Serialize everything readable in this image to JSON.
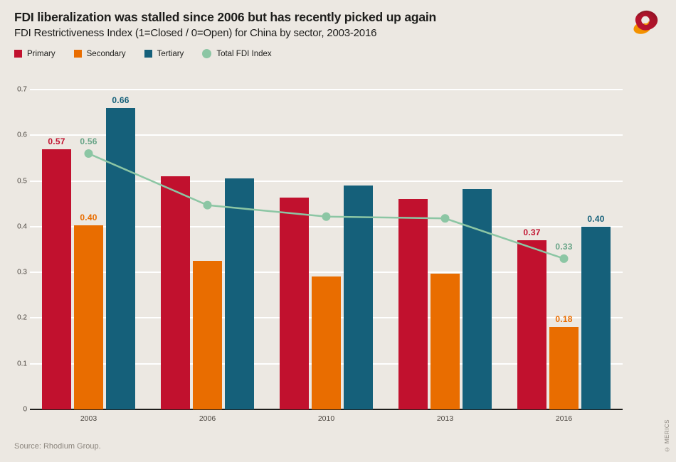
{
  "page": {
    "background": "#ECE8E2"
  },
  "header": {
    "title": "FDI liberalization was stalled since 2006 but has recently picked up again",
    "subtitle": "FDI Restrictiveness Index (1=Closed / 0=Open) for China by sector, 2003-2016"
  },
  "legend": {
    "items": [
      {
        "label": "Primary",
        "color": "#C1112E",
        "shape": "square"
      },
      {
        "label": "Secondary",
        "color": "#E96D00",
        "shape": "square"
      },
      {
        "label": "Tertiary",
        "color": "#15607A",
        "shape": "square"
      },
      {
        "label": "Total FDI Index",
        "color": "#8CC6A4",
        "shape": "circle"
      }
    ]
  },
  "logo": {
    "name": "merics-logo",
    "colors": {
      "dark_red": "#8E1A26",
      "red": "#C1112E",
      "orange": "#F39200"
    }
  },
  "chart_data": {
    "type": "bar",
    "title": "FDI liberalization was stalled since 2006 but has recently picked up again",
    "subtitle": "FDI Restrictiveness Index (1=Closed / 0=Open) for China by sector, 2003-2016",
    "categories": [
      "2003",
      "2006",
      "2010",
      "2013",
      "2016"
    ],
    "series": [
      {
        "name": "Primary",
        "render": "bar",
        "color": "#C1112E",
        "label_color": "#C1112E",
        "values": [
          0.57,
          0.51,
          0.463,
          0.46,
          0.37
        ],
        "labels": [
          "0.57",
          null,
          null,
          null,
          "0.37"
        ]
      },
      {
        "name": "Secondary",
        "render": "bar",
        "color": "#E96D00",
        "label_color": "#E96D00",
        "values": [
          0.403,
          0.325,
          0.291,
          0.297,
          0.18
        ],
        "labels": [
          "0.40",
          null,
          null,
          null,
          "0.18"
        ]
      },
      {
        "name": "Tertiary",
        "render": "bar",
        "color": "#15607A",
        "label_color": "#15607A",
        "values": [
          0.66,
          0.505,
          0.49,
          0.482,
          0.4
        ],
        "labels": [
          "0.66",
          null,
          null,
          null,
          "0.40"
        ]
      },
      {
        "name": "Total FDI Index",
        "render": "line",
        "color": "#8CC6A4",
        "label_color": "#68A487",
        "values": [
          0.56,
          0.447,
          0.422,
          0.418,
          0.33
        ],
        "labels": [
          "0.56",
          null,
          null,
          null,
          "0.33"
        ]
      }
    ],
    "xlabel": "",
    "ylabel": "",
    "ylim": [
      0,
      0.7
    ],
    "yticks": [
      {
        "label": "0.7",
        "value": 0.7
      },
      {
        "label": "0.6",
        "value": 0.6
      },
      {
        "label": "0.5",
        "value": 0.5
      },
      {
        "label": "0.4",
        "value": 0.4
      },
      {
        "label": "0.3",
        "value": 0.3
      },
      {
        "label": "0.2",
        "value": 0.2
      },
      {
        "label": "0.1",
        "value": 0.1
      },
      {
        "label": "0",
        "value": 0
      }
    ],
    "grid": "horizontal-white",
    "legend_position": "top-left"
  },
  "footer": {
    "source": "Source: Rhodium Group.",
    "copyright": "© MERICS"
  }
}
